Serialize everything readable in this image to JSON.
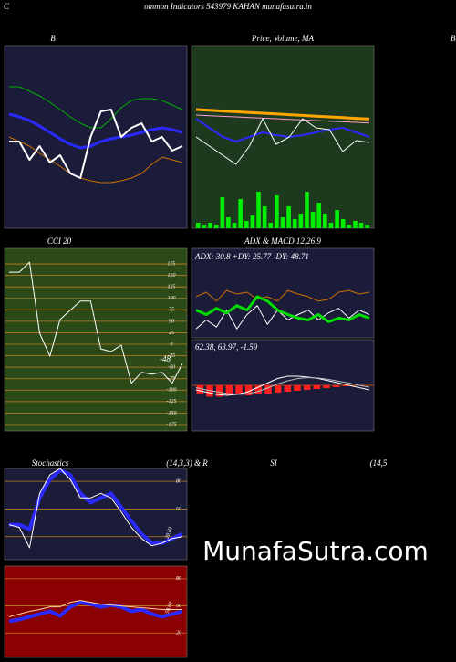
{
  "page": {
    "letter": "C",
    "title": "ommon Indicators 543979 KAHAN munafasutra.in",
    "edge_label": "B",
    "watermark": "MunafaSutra.com"
  },
  "chart_data": [
    {
      "type": "line",
      "title": "B",
      "ylim": [
        0,
        100
      ],
      "background": "#1b1b3a",
      "series": [
        {
          "name": "Upper",
          "color": "#00b000",
          "width": 1,
          "values": [
            77.5,
            77.5,
            75,
            72.5,
            69,
            65,
            61,
            57.5,
            55,
            55,
            60,
            66,
            70,
            71,
            71,
            70,
            67.5,
            65
          ]
        },
        {
          "name": "Middle",
          "color": "#2a2aff",
          "width": 3,
          "values": [
            62.5,
            61,
            59,
            56,
            52.5,
            49,
            46,
            44,
            45,
            47.5,
            49,
            50,
            51,
            52.5,
            54,
            55,
            54,
            52.5
          ]
        },
        {
          "name": "Lower",
          "color": "#d07000",
          "width": 1,
          "values": [
            50,
            47.5,
            45,
            41,
            37.5,
            34,
            30,
            27.5,
            26,
            25,
            25,
            26,
            27.5,
            30,
            35,
            39,
            37.5,
            36
          ]
        },
        {
          "name": "Price",
          "color": "#ffffff",
          "width": 2,
          "values": [
            47.5,
            47.5,
            37.5,
            45,
            36,
            40,
            30,
            27.5,
            50,
            64,
            65,
            50,
            55,
            57.5,
            47.5,
            50,
            42.5,
            45
          ]
        }
      ]
    },
    {
      "type": "line",
      "title": "Price, Volume, MA",
      "ylim": [
        0,
        100
      ],
      "background": "#1e3a1e",
      "series": [
        {
          "name": "Volume",
          "style": "bar",
          "color": "#00ee00",
          "values": [
            3,
            2,
            3,
            2,
            17,
            6,
            3,
            16,
            4,
            7,
            20,
            12,
            3,
            18,
            6,
            12,
            5,
            8,
            20,
            9,
            14,
            8,
            3,
            10,
            5,
            2,
            4,
            3,
            2
          ]
        },
        {
          "name": "MA1",
          "color": "#ffa500",
          "width": 3,
          "values": [
            65,
            64.6,
            64.2,
            63.8,
            63.4,
            63,
            62.6,
            62.2,
            61.8,
            61.4,
            61,
            60.6,
            60.2,
            59.8
          ]
        },
        {
          "name": "MA2",
          "color": "#ff9ad0",
          "width": 1,
          "values": [
            62,
            61.6,
            61.3,
            61,
            60.6,
            60.3,
            60,
            59.6,
            59.3,
            59,
            58.6,
            58.3,
            58,
            57.6
          ]
        },
        {
          "name": "MA3",
          "color": "#2a2aff",
          "width": 2,
          "values": [
            60,
            55,
            50,
            47.5,
            50,
            52.5,
            51,
            50,
            51,
            52.5,
            54,
            55,
            52.5,
            50
          ]
        },
        {
          "name": "Close",
          "color": "#ffffff",
          "width": 1,
          "values": [
            50,
            45,
            40,
            35,
            45,
            60,
            46,
            50,
            60,
            55,
            54,
            42,
            48,
            47
          ]
        }
      ]
    },
    {
      "type": "line",
      "title": "CCI 20",
      "ylim": [
        -189,
        209
      ],
      "background": "#2b4a18",
      "grid": true,
      "grid_color": "#c08020",
      "yticks": [
        175,
        150,
        125,
        100,
        75,
        50,
        25,
        0,
        -25,
        -50,
        -75,
        -100,
        -125,
        -150,
        -175
      ],
      "annotations": [
        "-48"
      ],
      "series": [
        {
          "name": "CCI",
          "color": "#ffffff",
          "width": 1,
          "values": [
            157,
            157,
            179,
            24,
            -26,
            54,
            74,
            94,
            94,
            -10,
            -16,
            -2,
            -85,
            -61,
            -65,
            -61,
            -85,
            -42
          ]
        }
      ]
    },
    {
      "type": "line",
      "title": "ADX  & MACD 12,26,9",
      "ylim": [
        0,
        100
      ],
      "background": "#1b1b3a",
      "annotations": [
        "ADX: 30.8  +DY: 25.77 -DY: 48.71"
      ],
      "series": [
        {
          "name": "+DY",
          "color": "#d07000",
          "width": 1,
          "values": [
            46,
            51,
            41,
            53,
            49,
            51,
            43,
            46,
            41,
            53,
            49,
            46,
            41,
            43,
            51,
            53,
            49,
            51
          ]
        },
        {
          "name": "ADX",
          "color": "#ffffff",
          "width": 1,
          "values": [
            10,
            20,
            12,
            31,
            10,
            26,
            36,
            15,
            31,
            20,
            26,
            31,
            20,
            28,
            33,
            22,
            31,
            26
          ]
        },
        {
          "name": "-DY",
          "color": "#00dd00",
          "width": 3,
          "values": [
            31,
            26,
            33,
            28,
            36,
            31,
            46,
            41,
            31,
            26,
            22,
            20,
            26,
            18,
            22,
            20,
            26,
            22
          ]
        }
      ]
    },
    {
      "type": "line",
      "ylim": [
        -10,
        10
      ],
      "background": "#1b1b3a",
      "annotations": [
        "62.38,  63.97,  -1.59"
      ],
      "zero_color": "#c04000",
      "series": [
        {
          "name": "Histogram",
          "style": "bar",
          "color": "#ff2020",
          "values": [
            -2,
            -2.5,
            -2.5,
            -2.2,
            -2,
            -2.2,
            -2,
            -1.8,
            -1.6,
            -1.4,
            -1.2,
            -1,
            -0.8,
            -0.6,
            -0.4,
            -0.2,
            0,
            0
          ]
        },
        {
          "name": "MACD",
          "color": "#ffffff",
          "width": 1,
          "values": [
            -1,
            -1.5,
            -2,
            -2.2,
            -2,
            -1.5,
            -0.5,
            0.5,
            1.5,
            2,
            2,
            1.8,
            1.5,
            1,
            0.5,
            0,
            -0.5,
            -1
          ]
        },
        {
          "name": "Signal",
          "color": "#bbbbbb",
          "width": 1,
          "values": [
            -0.5,
            -1,
            -1.4,
            -1.8,
            -2,
            -1.9,
            -1.4,
            -0.6,
            0.3,
            1,
            1.5,
            1.7,
            1.6,
            1.3,
            0.9,
            0.5,
            0,
            -0.4
          ]
        }
      ]
    },
    {
      "type": "line",
      "title": "Stochastics",
      "subtitle": "(14,3,3) & R",
      "ylim": [
        -5,
        94
      ],
      "background": "#1b1b3a",
      "grid": true,
      "grid_color": "#c08020",
      "yticks": [
        80,
        50,
        20
      ],
      "annotations": [
        "20.03"
      ],
      "series": [
        {
          "name": "%K",
          "color": "#2a2aff",
          "width": 4,
          "values": [
            33,
            33,
            28,
            62,
            82,
            92,
            87,
            67,
            57,
            62,
            67,
            52,
            37,
            23,
            13,
            13,
            18,
            23
          ]
        },
        {
          "name": "%D",
          "color": "#ffffff",
          "width": 1,
          "values": [
            33,
            30,
            8,
            67,
            87,
            94,
            82,
            62,
            62,
            67,
            62,
            47,
            30,
            18,
            10,
            13,
            18,
            20
          ]
        }
      ]
    },
    {
      "type": "line",
      "title": "SI",
      "subtitle": "(14,5",
      "ylim": [
        -7,
        94
      ],
      "background": "#8b0000",
      "grid": true,
      "grid_color": "#c08020",
      "yticks": [
        80,
        50,
        20
      ],
      "annotations": [
        "50.64"
      ],
      "series": [
        {
          "name": "RSI",
          "color": "#2a2aff",
          "width": 4,
          "values": [
            33,
            35,
            38,
            41,
            44,
            39,
            49,
            54,
            52,
            49,
            51,
            49,
            44,
            46,
            41,
            38,
            41,
            44
          ]
        },
        {
          "name": "Signal",
          "color": "#ffd0a0",
          "width": 1,
          "values": [
            38,
            41,
            44,
            46,
            49,
            49,
            54,
            56,
            54,
            52,
            51,
            50,
            49,
            48,
            47,
            46,
            46,
            46
          ]
        }
      ]
    }
  ]
}
